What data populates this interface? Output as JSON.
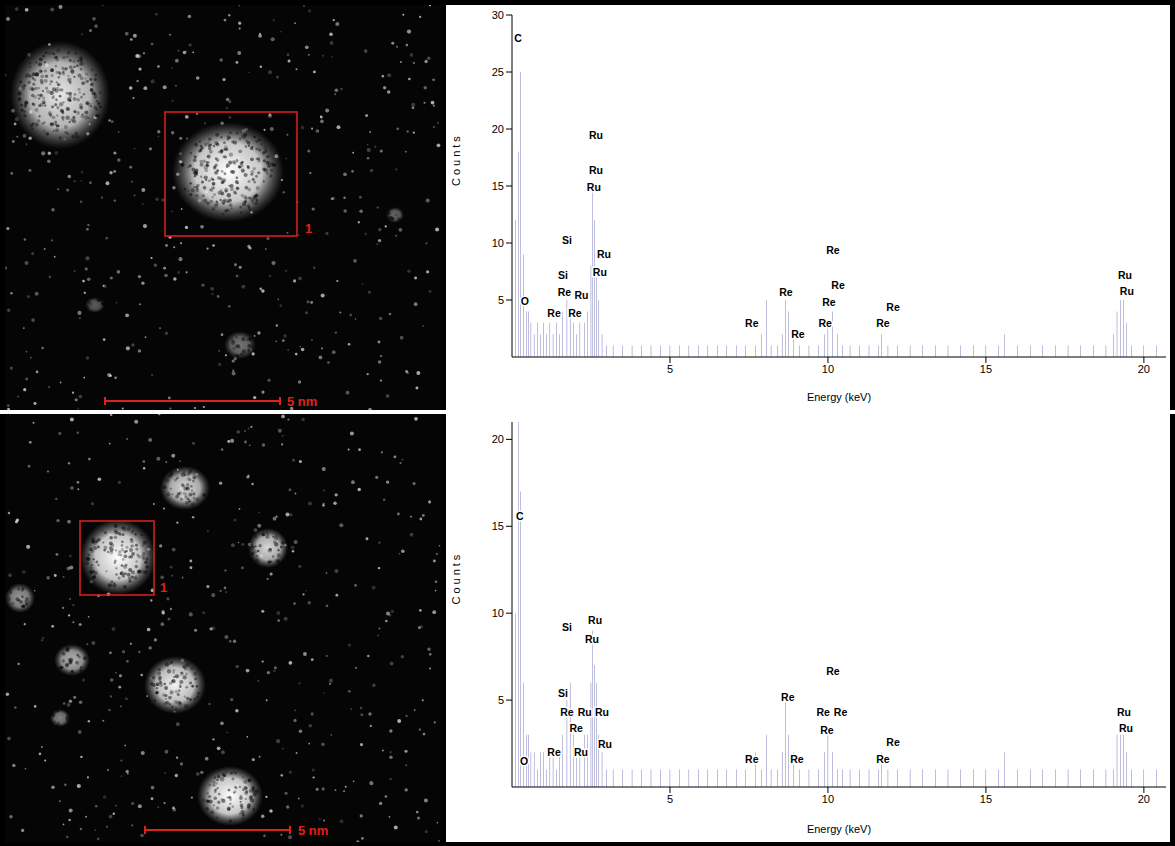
{
  "chart_data": [
    {
      "type": "bar",
      "x_label": "Energy (keV)",
      "y_label": "Counts",
      "xlim": [
        0,
        20.7
      ],
      "xticks": [
        5,
        10,
        15,
        20
      ],
      "ylim": [
        0,
        30
      ],
      "yticks": [
        5,
        10,
        15,
        20,
        25,
        30
      ],
      "grid": false,
      "color": "#1a1a8c",
      "x": [
        0.1,
        0.2,
        0.28,
        0.36,
        0.45,
        0.52,
        0.6,
        0.7,
        0.8,
        0.9,
        1.0,
        1.1,
        1.2,
        1.3,
        1.4,
        1.5,
        1.6,
        1.74,
        1.84,
        1.95,
        2.05,
        2.15,
        2.3,
        2.4,
        2.5,
        2.56,
        2.62,
        2.68,
        2.75,
        2.85,
        3.0,
        3.2,
        3.5,
        3.8,
        4.1,
        4.4,
        4.7,
        5.0,
        5.3,
        5.6,
        5.9,
        6.2,
        6.5,
        6.8,
        7.1,
        7.4,
        7.7,
        7.9,
        8.05,
        8.2,
        8.4,
        8.55,
        8.65,
        8.75,
        8.9,
        9.1,
        9.4,
        9.7,
        9.9,
        10.0,
        10.15,
        10.3,
        10.45,
        10.7,
        11.0,
        11.3,
        11.6,
        11.7,
        11.9,
        12.2,
        12.6,
        13.0,
        13.4,
        13.8,
        14.2,
        14.6,
        15.0,
        15.4,
        15.6,
        16.0,
        16.4,
        16.8,
        17.2,
        17.6,
        18.0,
        18.4,
        18.8,
        19.05,
        19.15,
        19.25,
        19.35,
        19.45,
        19.6,
        20.0,
        20.4
      ],
      "values": [
        12,
        18,
        25,
        9,
        4,
        4,
        3,
        2,
        3,
        2,
        3,
        2,
        3,
        2,
        3,
        2,
        4,
        5,
        4,
        3,
        2,
        3,
        3,
        4,
        8,
        15,
        12,
        7,
        5,
        2,
        1,
        1,
        1,
        1,
        1,
        1,
        1,
        1,
        1,
        1,
        1,
        1,
        1,
        1,
        1,
        1,
        1,
        2,
        5,
        1,
        1,
        2,
        5,
        4,
        2,
        1,
        1,
        1,
        2,
        3,
        4,
        2,
        1,
        1,
        1,
        1,
        1,
        2,
        1,
        1,
        1,
        1,
        1,
        1,
        1,
        1,
        1,
        1,
        2,
        1,
        1,
        1,
        1,
        1,
        1,
        1,
        1,
        2,
        4,
        5,
        5,
        3,
        1,
        1,
        1
      ],
      "annotations": [
        {
          "text": "C",
          "x": 0.19,
          "y": 28
        },
        {
          "text": "O",
          "x": 0.41,
          "y": 4.9
        },
        {
          "text": "Si",
          "x": 1.74,
          "y": 10.3
        },
        {
          "text": "Si",
          "x": 1.61,
          "y": 7.2
        },
        {
          "text": "Re",
          "x": 1.33,
          "y": 3.9
        },
        {
          "text": "Re",
          "x": 1.66,
          "y": 5.7
        },
        {
          "text": "Ru",
          "x": 2.2,
          "y": 5.4
        },
        {
          "text": "Re",
          "x": 1.99,
          "y": 3.9
        },
        {
          "text": "Ru",
          "x": 2.66,
          "y": 19.5
        },
        {
          "text": "Ru",
          "x": 2.66,
          "y": 16.4
        },
        {
          "text": "Ru",
          "x": 2.59,
          "y": 14.9
        },
        {
          "text": "Ru",
          "x": 2.91,
          "y": 9.0
        },
        {
          "text": "Ru",
          "x": 2.78,
          "y": 7.5
        },
        {
          "text": "Re",
          "x": 7.59,
          "y": 3.0
        },
        {
          "text": "Re",
          "x": 8.67,
          "y": 5.7
        },
        {
          "text": "Re",
          "x": 9.05,
          "y": 2.0
        },
        {
          "text": "Re",
          "x": 10.16,
          "y": 9.4
        },
        {
          "text": "Re",
          "x": 10.32,
          "y": 6.3
        },
        {
          "text": "Re",
          "x": 10.03,
          "y": 4.8
        },
        {
          "text": "Re",
          "x": 9.91,
          "y": 3.0
        },
        {
          "text": "Re",
          "x": 12.06,
          "y": 4.4
        },
        {
          "text": "Re",
          "x": 11.74,
          "y": 3.0
        },
        {
          "text": "Ru",
          "x": 19.4,
          "y": 7.2
        },
        {
          "text": "Ru",
          "x": 19.46,
          "y": 5.8
        }
      ]
    },
    {
      "type": "bar",
      "x_label": "Energy (keV)",
      "y_label": "Counts",
      "xlim": [
        0,
        20.7
      ],
      "xticks": [
        5,
        10,
        15,
        20
      ],
      "ylim": [
        0,
        21
      ],
      "yticks": [
        5,
        10,
        15,
        20
      ],
      "grid": false,
      "color": "#1a1a8c",
      "x": [
        0.1,
        0.2,
        0.28,
        0.36,
        0.45,
        0.52,
        0.6,
        0.7,
        0.8,
        0.9,
        1.0,
        1.1,
        1.2,
        1.3,
        1.4,
        1.5,
        1.6,
        1.74,
        1.84,
        1.95,
        2.05,
        2.15,
        2.3,
        2.4,
        2.5,
        2.56,
        2.62,
        2.68,
        2.75,
        2.85,
        3.0,
        3.2,
        3.5,
        3.8,
        4.1,
        4.4,
        4.7,
        5.0,
        5.3,
        5.6,
        5.9,
        6.2,
        6.5,
        6.8,
        7.1,
        7.4,
        7.7,
        7.9,
        8.05,
        8.2,
        8.4,
        8.55,
        8.65,
        8.75,
        8.9,
        9.1,
        9.4,
        9.7,
        9.9,
        10.0,
        10.15,
        10.3,
        10.45,
        10.7,
        11.0,
        11.3,
        11.6,
        11.7,
        11.9,
        12.2,
        12.6,
        13.0,
        13.4,
        13.8,
        14.2,
        14.6,
        15.0,
        15.4,
        15.6,
        16.0,
        16.4,
        16.8,
        17.2,
        17.6,
        18.0,
        18.4,
        18.8,
        19.05,
        19.15,
        19.25,
        19.35,
        19.45,
        19.6,
        20.0,
        20.4
      ],
      "values": [
        10,
        21,
        17,
        6,
        3,
        3,
        2,
        2,
        1,
        2,
        2,
        1,
        2,
        2,
        1,
        2,
        3,
        5,
        6,
        3,
        2,
        2,
        3,
        3,
        6,
        9,
        7,
        6,
        3,
        2,
        1,
        1,
        1,
        1,
        1,
        1,
        1,
        1,
        1,
        1,
        1,
        1,
        1,
        1,
        1,
        1,
        2,
        1,
        3,
        1,
        1,
        2,
        5,
        3,
        2,
        1,
        1,
        1,
        2,
        3,
        2,
        1,
        1,
        1,
        1,
        1,
        1,
        2,
        1,
        1,
        1,
        1,
        1,
        1,
        1,
        1,
        1,
        1,
        2,
        1,
        1,
        1,
        1,
        1,
        1,
        1,
        1,
        1,
        3,
        3,
        3,
        2,
        1,
        1,
        1
      ],
      "annotations": [
        {
          "text": "C",
          "x": 0.25,
          "y": 15.6
        },
        {
          "text": "O",
          "x": 0.38,
          "y": 1.5
        },
        {
          "text": "Re",
          "x": 1.33,
          "y": 2.0
        },
        {
          "text": "Si",
          "x": 1.74,
          "y": 9.2
        },
        {
          "text": "Si",
          "x": 1.61,
          "y": 5.4
        },
        {
          "text": "Re",
          "x": 1.74,
          "y": 4.3
        },
        {
          "text": "Re",
          "x": 2.03,
          "y": 3.4
        },
        {
          "text": "Ru",
          "x": 2.18,
          "y": 2.0
        },
        {
          "text": "Ru",
          "x": 2.3,
          "y": 4.3
        },
        {
          "text": "Ru",
          "x": 2.63,
          "y": 9.6
        },
        {
          "text": "Ru",
          "x": 2.53,
          "y": 8.5
        },
        {
          "text": "Ru",
          "x": 2.85,
          "y": 4.3
        },
        {
          "text": "Ru",
          "x": 2.94,
          "y": 2.5
        },
        {
          "text": "Re",
          "x": 7.59,
          "y": 1.6
        },
        {
          "text": "Re",
          "x": 8.73,
          "y": 5.2
        },
        {
          "text": "Re",
          "x": 9.02,
          "y": 1.6
        },
        {
          "text": "Re",
          "x": 10.16,
          "y": 6.7
        },
        {
          "text": "Re",
          "x": 9.85,
          "y": 4.3
        },
        {
          "text": "Re",
          "x": 10.4,
          "y": 4.3
        },
        {
          "text": "Re",
          "x": 9.97,
          "y": 3.3
        },
        {
          "text": "Re",
          "x": 12.06,
          "y": 2.6
        },
        {
          "text": "Re",
          "x": 11.74,
          "y": 1.6
        },
        {
          "text": "Ru",
          "x": 19.37,
          "y": 4.3
        },
        {
          "text": "Ru",
          "x": 19.43,
          "y": 3.4
        }
      ]
    }
  ],
  "images": [
    {
      "region_label": "1",
      "scale_bar": "5 nm"
    },
    {
      "region_label": "1",
      "scale_bar": "5 nm"
    }
  ]
}
